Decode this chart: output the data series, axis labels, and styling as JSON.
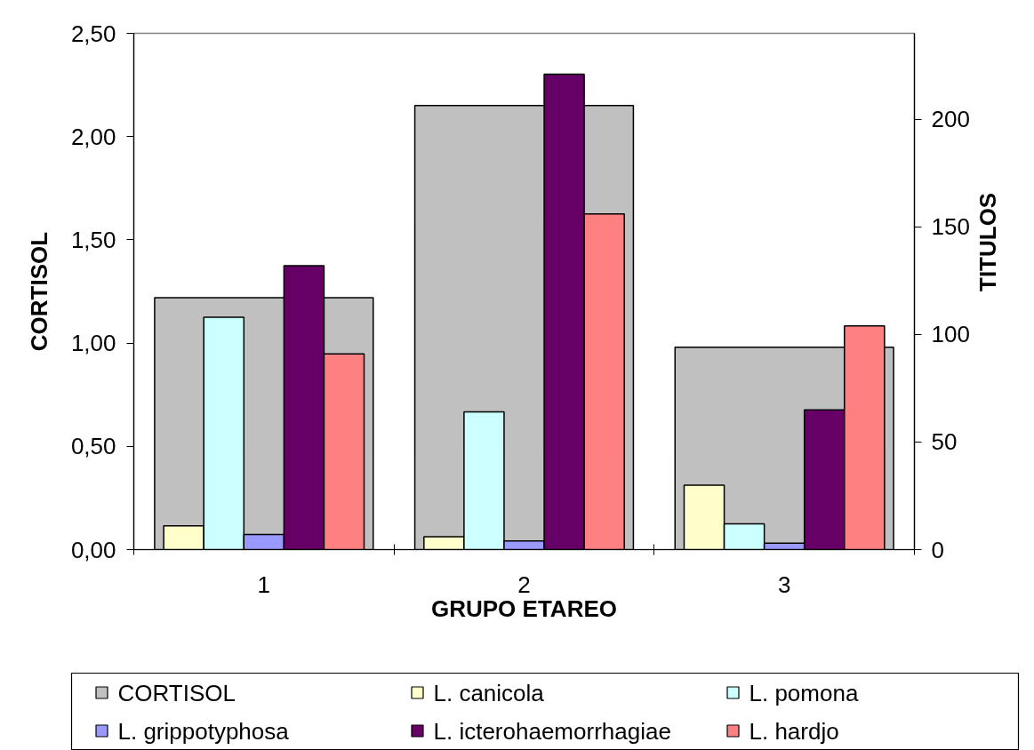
{
  "chart_data": {
    "type": "bar",
    "xlabel": "GRUPO ETAREO",
    "ylabel": "CORTISOL",
    "y2label": "TITULOS",
    "categories": [
      "1",
      "2",
      "3"
    ],
    "ylim": [
      0,
      2.5
    ],
    "yticks": [
      {
        "value": 0,
        "label": "0,00"
      },
      {
        "value": 0.5,
        "label": "0,50"
      },
      {
        "value": 1,
        "label": "1,00"
      },
      {
        "value": 1.5,
        "label": "1,50"
      },
      {
        "value": 2,
        "label": "2,00"
      },
      {
        "value": 2.5,
        "label": "2,50"
      }
    ],
    "y2lim": [
      0,
      240
    ],
    "y2ticks": [
      0,
      50,
      100,
      150,
      200
    ],
    "legend": "bottom",
    "series": [
      {
        "name": "CORTISOL",
        "color": "#c0c0c0",
        "values": [
          1.22,
          2.15,
          0.98
        ]
      },
      {
        "name": "L. canicola",
        "color": "#ffffcc",
        "values": [
          11,
          6,
          30
        ],
        "axis": "y2"
      },
      {
        "name": "L. pomona",
        "color": "#ccffff",
        "values": [
          108,
          64,
          12
        ],
        "axis": "y2"
      },
      {
        "name": "L. grippotyphosa",
        "color": "#9999ff",
        "values": [
          7,
          4,
          3
        ],
        "axis": "y2"
      },
      {
        "name": "L. icterohaemorrhagiae",
        "color": "#660066",
        "values": [
          132,
          221,
          65
        ],
        "axis": "y2"
      },
      {
        "name": "L. hardjo",
        "color": "#ff8080",
        "values": [
          91,
          156,
          104
        ],
        "axis": "y2"
      }
    ]
  }
}
